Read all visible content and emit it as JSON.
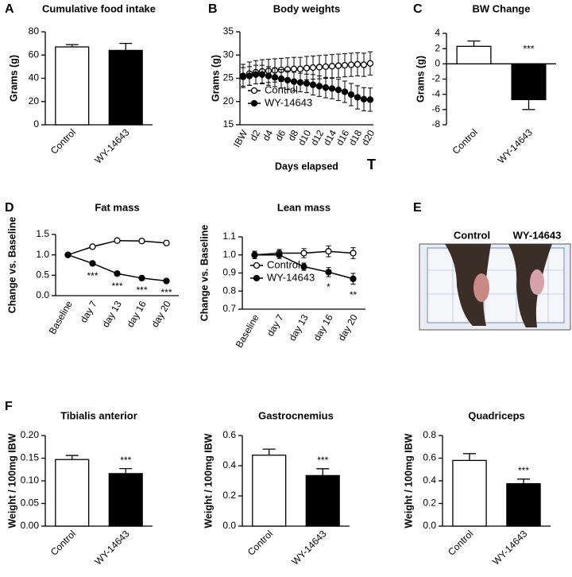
{
  "panel_letters": [
    "A",
    "B",
    "C",
    "D",
    "E",
    "F"
  ],
  "photo": {
    "labels": [
      "Control",
      "WY-14643"
    ],
    "label_colors": [
      "#1f1fd6",
      "#e3261f"
    ]
  },
  "chart_data": [
    {
      "type": "bar",
      "title": "Cumulative food intake",
      "y_label": "Grams (g)",
      "categories": [
        "Control",
        "WY-14643"
      ],
      "values": [
        67,
        64
      ],
      "errors": [
        2,
        6
      ],
      "colors": [
        "#ffffff",
        "#000000"
      ],
      "ylim": [
        0,
        80
      ],
      "yticks": [
        0,
        20,
        40,
        60,
        80
      ]
    },
    {
      "type": "line",
      "title": "Body weights",
      "y_label": "Grams (g)",
      "x_label": "Days elapsed",
      "note": "T",
      "categories": [
        "IBW",
        null,
        "d2",
        null,
        "d4",
        null,
        "d6",
        null,
        "d8",
        null,
        "d10",
        null,
        "d12",
        null,
        "d14",
        null,
        "d16",
        null,
        "d18",
        null,
        "d20"
      ],
      "series": [
        {
          "name": "Control",
          "color": "#000000",
          "fill": "#ffffff",
          "values": [
            25.5,
            26,
            26.3,
            26.5,
            26.6,
            26.7,
            26.8,
            26.9,
            27,
            27,
            27.2,
            27.3,
            27.4,
            27.5,
            27.6,
            27.7,
            27.8,
            27.9,
            28,
            27.9,
            28.2
          ],
          "errors": [
            2.5,
            2.5,
            2.5,
            2.5,
            2.5,
            2.5,
            2.5,
            2.5,
            2.5,
            2.5,
            2.5,
            2.5,
            2.5,
            2.5,
            2.5,
            2.5,
            2.5,
            2.5,
            2.5,
            2.5,
            2.5
          ]
        },
        {
          "name": "WY-14643",
          "color": "#000000",
          "fill": "#000000",
          "values": [
            25.3,
            25.5,
            25.8,
            25.8,
            25.5,
            25.2,
            24.9,
            24.6,
            24.3,
            24.1,
            23.9,
            23.6,
            23.3,
            23,
            22.8,
            22.5,
            22.1,
            21.5,
            20.9,
            20.5,
            20.4
          ],
          "errors": [
            2,
            2,
            2,
            2,
            2,
            2,
            2,
            2,
            2,
            2,
            2,
            2.2,
            2.2,
            2.2,
            2.2,
            2.3,
            2.3,
            2.4,
            2.5,
            2.5,
            2.5
          ]
        }
      ],
      "ylim": [
        15,
        35
      ],
      "yticks": [
        15,
        20,
        25,
        30,
        35
      ],
      "legend": "bottom-left"
    },
    {
      "type": "bar",
      "title": "BW Change",
      "y_label": "Grams (g)",
      "categories": [
        "Control",
        "WY-14643"
      ],
      "values": [
        2.3,
        -4.7
      ],
      "errors": [
        0.7,
        1.3
      ],
      "colors": [
        "#ffffff",
        "#000000"
      ],
      "annotations": [
        null,
        "***"
      ],
      "ylim": [
        -8,
        4
      ],
      "yticks": [
        -8,
        -6,
        -4,
        -2,
        0,
        2,
        4
      ]
    },
    {
      "type": "line",
      "title": "Fat mass",
      "y_label": "Change vs. Baseline",
      "categories": [
        "Baseline",
        "day 7",
        "day 13",
        "day 16",
        "day 20"
      ],
      "series": [
        {
          "name": "Control",
          "color": "#000000",
          "fill": "#ffffff",
          "values": [
            1.0,
            1.2,
            1.35,
            1.34,
            1.29
          ],
          "errors": [
            0.05,
            0.05,
            0.05,
            0.05,
            0.05
          ]
        },
        {
          "name": "WY-14643",
          "color": "#000000",
          "fill": "#000000",
          "values": [
            1.0,
            0.79,
            0.54,
            0.43,
            0.36
          ],
          "errors": [
            0.05,
            0.05,
            0.05,
            0.04,
            0.03
          ]
        }
      ],
      "annotations": [
        null,
        "***",
        "***",
        "***",
        "***"
      ],
      "ylim": [
        0,
        1.5
      ],
      "yticks": [
        {
          "value": 0,
          "label": "0.0"
        },
        {
          "value": 0.5,
          "label": "0.5"
        },
        {
          "value": 1,
          "label": "1.0"
        },
        {
          "value": 1.5,
          "label": "1.5"
        }
      ]
    },
    {
      "type": "line",
      "title": "Lean mass",
      "y_label": "Change vs. Baseline",
      "categories": [
        "Baseline",
        "day 7",
        "day 13",
        "day 16",
        "day 20"
      ],
      "series": [
        {
          "name": "Control",
          "color": "#000000",
          "fill": "#ffffff",
          "values": [
            1.0,
            1.01,
            1.01,
            1.02,
            1.01
          ],
          "errors": [
            0.02,
            0.02,
            0.025,
            0.03,
            0.03
          ]
        },
        {
          "name": "WY-14643",
          "color": "#000000",
          "fill": "#000000",
          "values": [
            1.0,
            1.0,
            0.935,
            0.905,
            0.868
          ],
          "errors": [
            0.02,
            0.02,
            0.02,
            0.025,
            0.03
          ]
        }
      ],
      "annotations": [
        null,
        null,
        null,
        "*",
        "**"
      ],
      "ylim": [
        0.7,
        1.1
      ],
      "yticks": [
        0.7,
        0.8,
        0.9,
        {
          "value": 1,
          "label": "1.0"
        },
        1.1
      ],
      "legend": "bottom-left"
    },
    {
      "type": "bar",
      "title": "Tibialis anterior",
      "y_label": "Weight / 100mg IBW",
      "categories": [
        "Control",
        "WY-14643"
      ],
      "values": [
        0.147,
        0.116
      ],
      "errors": [
        0.009,
        0.011
      ],
      "colors": [
        "#ffffff",
        "#000000"
      ],
      "annotations": [
        null,
        "***"
      ],
      "ylim": [
        0,
        0.2
      ],
      "yticks": [
        {
          "value": 0,
          "label": "0.00"
        },
        {
          "value": 0.05,
          "label": "0.05"
        },
        {
          "value": 0.1,
          "label": "0.10"
        },
        {
          "value": 0.15,
          "label": "0.15"
        },
        {
          "value": 0.2,
          "label": "0.20"
        }
      ]
    },
    {
      "type": "bar",
      "title": "Gastrocnemius",
      "y_label": "Weight / 100mg IBW",
      "categories": [
        "Control",
        "WY-14643"
      ],
      "values": [
        0.47,
        0.335
      ],
      "errors": [
        0.04,
        0.045
      ],
      "colors": [
        "#ffffff",
        "#000000"
      ],
      "annotations": [
        null,
        "***"
      ],
      "ylim": [
        0,
        0.6
      ],
      "yticks": [
        {
          "value": 0,
          "label": "0.0"
        },
        0.2,
        0.4,
        0.6
      ]
    },
    {
      "type": "bar",
      "title": "Quadriceps",
      "y_label": "Weight / 100mg IBW",
      "categories": [
        "Control",
        "WY-14643"
      ],
      "values": [
        0.58,
        0.375
      ],
      "errors": [
        0.06,
        0.04
      ],
      "colors": [
        "#ffffff",
        "#000000"
      ],
      "annotations": [
        null,
        "***"
      ],
      "ylim": [
        0,
        0.8
      ],
      "yticks": [
        {
          "value": 0,
          "label": "0.0"
        },
        0.2,
        0.4,
        0.6,
        0.8
      ]
    }
  ]
}
